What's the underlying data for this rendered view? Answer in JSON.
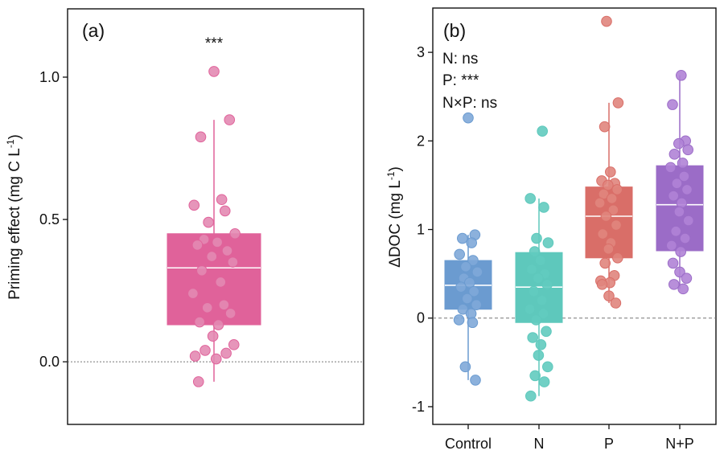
{
  "chart_data": [
    {
      "type": "box-scatter",
      "panel_label": "(a)",
      "ylabel": "Priming effect (mg C L",
      "ylabel_sup": "-1",
      "ylabel_end": ")",
      "ylim": [
        -0.22,
        1.24
      ],
      "yticks": [
        0.0,
        0.5,
        1.0
      ],
      "ytick_labels": [
        "0.0",
        "0.5",
        "1.0"
      ],
      "reference_line": 0,
      "significance": "***",
      "series": [
        {
          "color": "#e0629a",
          "point_color": "#e389b2",
          "box": {
            "q1": 0.13,
            "median": 0.33,
            "q3": 0.45,
            "whisker_low": -0.07,
            "whisker_high": 0.85
          },
          "points": [
            1.02,
            0.85,
            0.79,
            0.57,
            0.55,
            0.53,
            0.49,
            0.45,
            0.43,
            0.42,
            0.41,
            0.39,
            0.37,
            0.35,
            0.32,
            0.28,
            0.24,
            0.2,
            0.19,
            0.17,
            0.14,
            0.13,
            0.09,
            0.06,
            0.04,
            0.03,
            0.02,
            0.01,
            -0.07
          ]
        }
      ]
    },
    {
      "type": "box-scatter",
      "panel_label": "(b)",
      "ylabel": "ΔDOC (mg  L",
      "ylabel_sup": "-1",
      "ylabel_end": ")",
      "ylim": [
        -1.2,
        3.5
      ],
      "yticks": [
        -1,
        0,
        1,
        2,
        3
      ],
      "ytick_labels": [
        "-1",
        "0",
        "1",
        "2",
        "3"
      ],
      "reference_line": 0,
      "categories": [
        "Control",
        "N",
        "P",
        "N+P"
      ],
      "annotations": [
        "N: ns",
        "P: ***",
        "N×P: ns"
      ],
      "series": [
        {
          "category": "Control",
          "color": "#6b9bd0",
          "point_color": "#7fa8d8",
          "box": {
            "q1": 0.1,
            "median": 0.37,
            "q3": 0.65,
            "whisker_low": -0.7,
            "whisker_high": 0.94
          },
          "points": [
            2.26,
            0.94,
            0.9,
            0.85,
            0.72,
            0.65,
            0.58,
            0.52,
            0.45,
            0.4,
            0.35,
            0.3,
            0.22,
            0.15,
            0.1,
            0.05,
            -0.02,
            -0.05,
            -0.55,
            -0.7
          ]
        },
        {
          "category": "N",
          "color": "#5ec8bc",
          "point_color": "#62cbbf",
          "box": {
            "q1": -0.05,
            "median": 0.35,
            "q3": 0.74,
            "whisker_low": -0.88,
            "whisker_high": 1.35
          },
          "points": [
            2.11,
            1.35,
            1.25,
            0.9,
            0.85,
            0.75,
            0.65,
            0.55,
            0.5,
            0.45,
            0.38,
            0.3,
            0.2,
            0.1,
            0.05,
            -0.02,
            -0.15,
            -0.22,
            -0.3,
            -0.42,
            -0.55,
            -0.65,
            -0.72,
            -0.88
          ]
        },
        {
          "category": "P",
          "color": "#d96e68",
          "point_color": "#e0857d",
          "box": {
            "q1": 0.68,
            "median": 1.15,
            "q3": 1.48,
            "whisker_low": 0.17,
            "whisker_high": 2.43
          },
          "points": [
            3.35,
            2.43,
            2.16,
            1.65,
            1.55,
            1.52,
            1.5,
            1.45,
            1.4,
            1.35,
            1.3,
            1.22,
            1.15,
            1.05,
            0.95,
            0.85,
            0.78,
            0.68,
            0.62,
            0.48,
            0.42,
            0.4,
            0.38,
            0.25,
            0.17
          ]
        },
        {
          "category": "N+P",
          "color": "#9b6cc7",
          "point_color": "#b083d6",
          "box": {
            "q1": 0.76,
            "median": 1.28,
            "q3": 1.72,
            "whisker_low": 0.33,
            "whisker_high": 2.74
          },
          "points": [
            2.74,
            2.41,
            2.0,
            1.97,
            1.9,
            1.85,
            1.75,
            1.7,
            1.6,
            1.52,
            1.45,
            1.38,
            1.3,
            1.2,
            1.1,
            0.98,
            0.9,
            0.82,
            0.75,
            0.62,
            0.52,
            0.45,
            0.38,
            0.33
          ]
        }
      ]
    }
  ]
}
